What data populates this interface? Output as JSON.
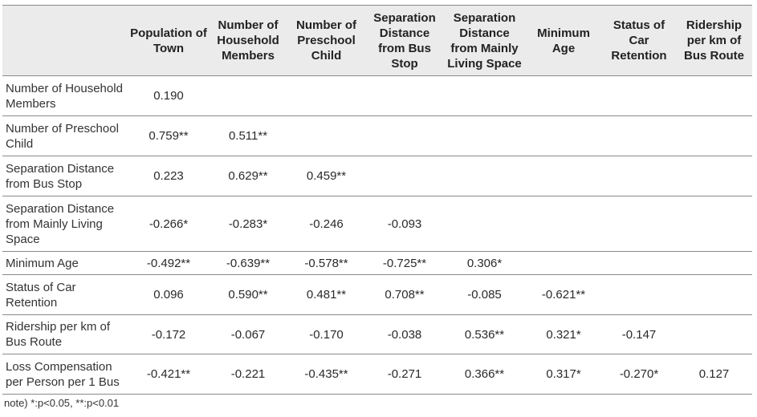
{
  "table": {
    "corner": "",
    "columns": [
      "Population of Town",
      "Number of Household Members",
      "Number of Preschool Child",
      "Separation Distance from Bus Stop",
      "Separation Distance from Mainly Living Space",
      "Minimum Age",
      "Status of Car Retention",
      "Ridership per km of Bus Route"
    ],
    "rows": [
      {
        "label": "Number of Household Members",
        "cells": [
          "0.190",
          "",
          "",
          "",
          "",
          "",
          "",
          ""
        ]
      },
      {
        "label": "Number of Preschool Child",
        "cells": [
          "0.759**",
          "0.511**",
          "",
          "",
          "",
          "",
          "",
          ""
        ]
      },
      {
        "label": "Separation Distance from Bus Stop",
        "cells": [
          "0.223",
          "0.629**",
          "0.459**",
          "",
          "",
          "",
          "",
          ""
        ]
      },
      {
        "label": "Separation Distance from Mainly Living Space",
        "cells": [
          "-0.266*",
          "-0.283*",
          "-0.246",
          "-0.093",
          "",
          "",
          "",
          ""
        ]
      },
      {
        "label": "Minimum Age",
        "cells": [
          "-0.492**",
          "-0.639**",
          "-0.578**",
          "-0.725**",
          "0.306*",
          "",
          "",
          ""
        ]
      },
      {
        "label": "Status of Car Retention",
        "cells": [
          "0.096",
          "0.590**",
          "0.481**",
          "0.708**",
          "-0.085",
          "-0.621**",
          "",
          ""
        ]
      },
      {
        "label": "Ridership per km of Bus Route",
        "cells": [
          "-0.172",
          "-0.067",
          "-0.170",
          "-0.038",
          "0.536**",
          "0.321*",
          "-0.147",
          ""
        ]
      },
      {
        "label": "Loss Compensation per Person per 1 Bus",
        "cells": [
          "-0.421**",
          "-0.221",
          "-0.435**",
          "-0.271",
          "0.366**",
          "0.317*",
          "-0.270*",
          "0.127"
        ]
      }
    ]
  },
  "note": "note) *:p<0.05, **:p<0.01"
}
